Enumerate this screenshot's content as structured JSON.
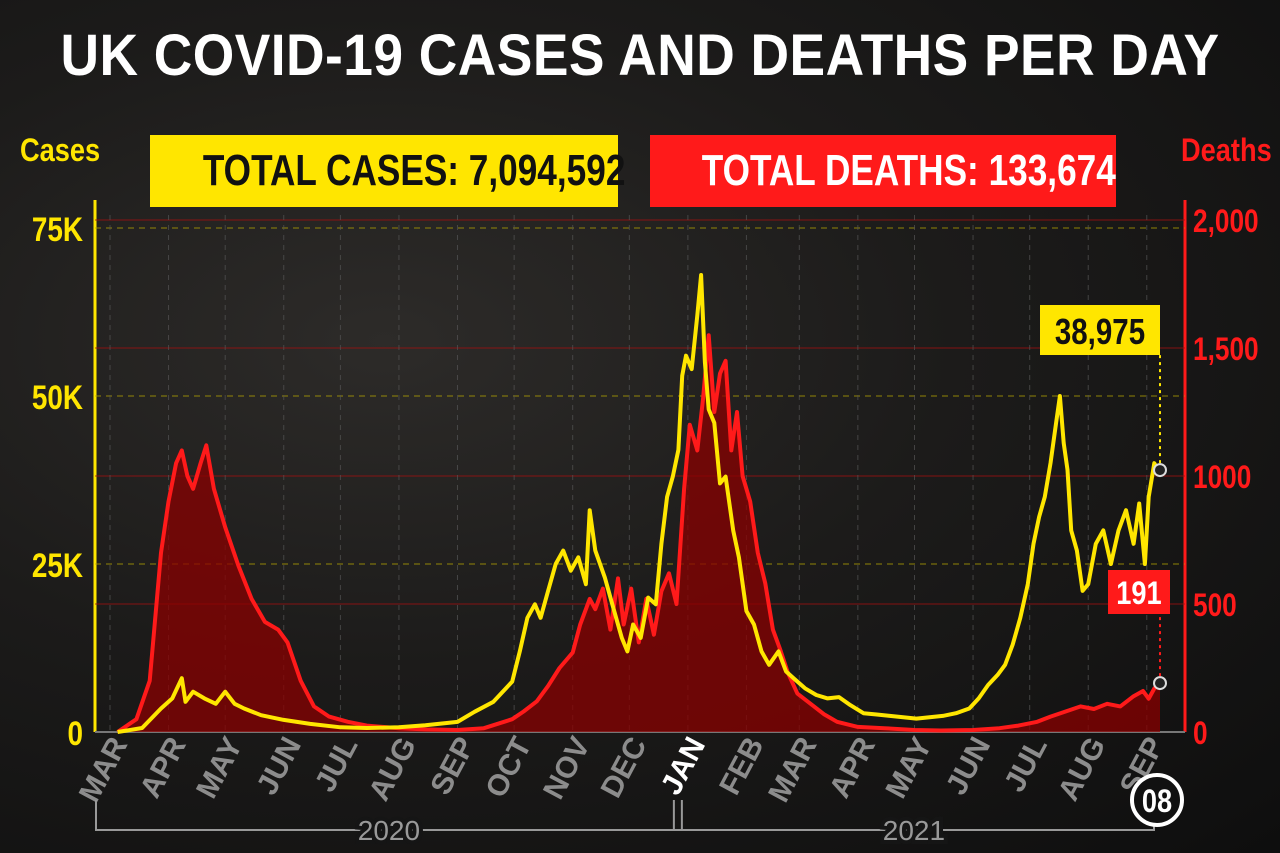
{
  "title": "UK COVID-19 CASES AND DEATHS PER DAY",
  "totals": {
    "cases_label": "TOTAL CASES: 7,094,592",
    "deaths_label": "TOTAL DEATHS: 133,674"
  },
  "callouts": {
    "latest_cases": "38,975",
    "latest_deaths": "191",
    "latest_date": "08"
  },
  "colors": {
    "cases": "#ffe600",
    "deaths": "#ff1a1a",
    "deaths_fill": "#8a0000",
    "month_labels": "#8c8c8c",
    "jan_label": "#ffffff"
  },
  "chart_data": {
    "type": "line",
    "title": "UK COVID-19 CASES AND DEATHS PER DAY",
    "left_axis": {
      "label": "Cases",
      "ticks": [
        "75K",
        "50K",
        "25K",
        "0"
      ],
      "range": [
        0,
        75000
      ]
    },
    "right_axis": {
      "label": "Deaths",
      "ticks": [
        "2,000",
        "1,500",
        "1000",
        "500",
        "0"
      ],
      "range": [
        0,
        2000
      ]
    },
    "x_range": [
      "2020-03-01",
      "2021-09-08"
    ],
    "months": [
      {
        "label": "MAR",
        "date": "2020-03-01"
      },
      {
        "label": "APR",
        "date": "2020-04-01"
      },
      {
        "label": "MAY",
        "date": "2020-05-01"
      },
      {
        "label": "JUN",
        "date": "2020-06-01"
      },
      {
        "label": "JUL",
        "date": "2020-07-01"
      },
      {
        "label": "AUG",
        "date": "2020-08-01"
      },
      {
        "label": "SEP",
        "date": "2020-09-01"
      },
      {
        "label": "OCT",
        "date": "2020-10-01"
      },
      {
        "label": "NOV",
        "date": "2020-11-01"
      },
      {
        "label": "DEC",
        "date": "2020-12-01"
      },
      {
        "label": "JAN",
        "date": "2021-01-01"
      },
      {
        "label": "FEB",
        "date": "2021-02-01"
      },
      {
        "label": "MAR",
        "date": "2021-03-01"
      },
      {
        "label": "APR",
        "date": "2021-04-01"
      },
      {
        "label": "MAY",
        "date": "2021-05-01"
      },
      {
        "label": "JUN",
        "date": "2021-06-01"
      },
      {
        "label": "JUL",
        "date": "2021-07-01"
      },
      {
        "label": "AUG",
        "date": "2021-08-01"
      },
      {
        "label": "SEP",
        "date": "2021-09-01"
      }
    ],
    "years": [
      {
        "label": "2020",
        "start": "2020-03-01",
        "end": "2021-01-01"
      },
      {
        "label": "2021",
        "start": "2021-01-01",
        "end": "2021-09-08"
      }
    ],
    "series": [
      {
        "name": "Cases",
        "axis": "left",
        "points": [
          [
            "2020-03-05",
            0
          ],
          [
            "2020-03-18",
            600
          ],
          [
            "2020-03-28",
            3500
          ],
          [
            "2020-04-03",
            5000
          ],
          [
            "2020-04-08",
            8000
          ],
          [
            "2020-04-10",
            4500
          ],
          [
            "2020-04-14",
            6000
          ],
          [
            "2020-04-20",
            5000
          ],
          [
            "2020-04-26",
            4200
          ],
          [
            "2020-05-01",
            6000
          ],
          [
            "2020-05-06",
            4200
          ],
          [
            "2020-05-11",
            3500
          ],
          [
            "2020-05-20",
            2500
          ],
          [
            "2020-06-01",
            1800
          ],
          [
            "2020-06-15",
            1200
          ],
          [
            "2020-07-01",
            700
          ],
          [
            "2020-07-15",
            600
          ],
          [
            "2020-08-01",
            700
          ],
          [
            "2020-08-15",
            1000
          ],
          [
            "2020-09-01",
            1500
          ],
          [
            "2020-09-10",
            3000
          ],
          [
            "2020-09-20",
            4500
          ],
          [
            "2020-09-30",
            7500
          ],
          [
            "2020-10-04",
            12000
          ],
          [
            "2020-10-08",
            17000
          ],
          [
            "2020-10-12",
            19000
          ],
          [
            "2020-10-15",
            17000
          ],
          [
            "2020-10-19",
            21000
          ],
          [
            "2020-10-23",
            25000
          ],
          [
            "2020-10-27",
            27000
          ],
          [
            "2020-10-31",
            24000
          ],
          [
            "2020-11-04",
            26000
          ],
          [
            "2020-11-08",
            22000
          ],
          [
            "2020-11-10",
            33000
          ],
          [
            "2020-11-13",
            27000
          ],
          [
            "2020-11-18",
            23000
          ],
          [
            "2020-11-22",
            19000
          ],
          [
            "2020-11-27",
            14000
          ],
          [
            "2020-11-30",
            12000
          ],
          [
            "2020-12-03",
            16000
          ],
          [
            "2020-12-07",
            14000
          ],
          [
            "2020-12-11",
            20000
          ],
          [
            "2020-12-15",
            19000
          ],
          [
            "2020-12-18",
            28000
          ],
          [
            "2020-12-21",
            35000
          ],
          [
            "2020-12-24",
            38000
          ],
          [
            "2020-12-27",
            42000
          ],
          [
            "2020-12-29",
            53000
          ],
          [
            "2020-12-31",
            56000
          ],
          [
            "2021-01-03",
            54000
          ],
          [
            "2021-01-06",
            62000
          ],
          [
            "2021-01-08",
            68000
          ],
          [
            "2021-01-10",
            55000
          ],
          [
            "2021-01-12",
            48000
          ],
          [
            "2021-01-15",
            46000
          ],
          [
            "2021-01-18",
            37000
          ],
          [
            "2021-01-21",
            38000
          ],
          [
            "2021-01-25",
            30000
          ],
          [
            "2021-01-28",
            26000
          ],
          [
            "2021-02-01",
            18000
          ],
          [
            "2021-02-05",
            16000
          ],
          [
            "2021-02-09",
            12000
          ],
          [
            "2021-02-13",
            10000
          ],
          [
            "2021-02-18",
            12000
          ],
          [
            "2021-02-22",
            9000
          ],
          [
            "2021-02-26",
            8000
          ],
          [
            "2021-03-04",
            6500
          ],
          [
            "2021-03-10",
            5500
          ],
          [
            "2021-03-16",
            5000
          ],
          [
            "2021-03-22",
            5200
          ],
          [
            "2021-03-28",
            4000
          ],
          [
            "2021-04-04",
            2800
          ],
          [
            "2021-04-11",
            2600
          ],
          [
            "2021-04-18",
            2400
          ],
          [
            "2021-04-25",
            2200
          ],
          [
            "2021-05-02",
            2000
          ],
          [
            "2021-05-09",
            2200
          ],
          [
            "2021-05-16",
            2400
          ],
          [
            "2021-05-23",
            2800
          ],
          [
            "2021-05-30",
            3500
          ],
          [
            "2021-06-04",
            5000
          ],
          [
            "2021-06-09",
            7000
          ],
          [
            "2021-06-14",
            8500
          ],
          [
            "2021-06-18",
            10000
          ],
          [
            "2021-06-22",
            13000
          ],
          [
            "2021-06-26",
            17000
          ],
          [
            "2021-06-30",
            22000
          ],
          [
            "2021-07-03",
            28000
          ],
          [
            "2021-07-06",
            32000
          ],
          [
            "2021-07-09",
            35000
          ],
          [
            "2021-07-12",
            40000
          ],
          [
            "2021-07-15",
            46000
          ],
          [
            "2021-07-17",
            50000
          ],
          [
            "2021-07-19",
            43000
          ],
          [
            "2021-07-21",
            39000
          ],
          [
            "2021-07-23",
            30000
          ],
          [
            "2021-07-26",
            27000
          ],
          [
            "2021-07-29",
            21000
          ],
          [
            "2021-08-01",
            22000
          ],
          [
            "2021-08-05",
            28000
          ],
          [
            "2021-08-09",
            30000
          ],
          [
            "2021-08-13",
            25000
          ],
          [
            "2021-08-17",
            30000
          ],
          [
            "2021-08-21",
            33000
          ],
          [
            "2021-08-25",
            28000
          ],
          [
            "2021-08-28",
            34000
          ],
          [
            "2021-08-31",
            25000
          ],
          [
            "2021-09-02",
            35000
          ],
          [
            "2021-09-05",
            40000
          ],
          [
            "2021-09-07",
            39000
          ],
          [
            "2021-09-08",
            38975
          ]
        ]
      },
      {
        "name": "Deaths",
        "axis": "right",
        "points": [
          [
            "2020-03-05",
            0
          ],
          [
            "2020-03-15",
            50
          ],
          [
            "2020-03-22",
            200
          ],
          [
            "2020-03-28",
            700
          ],
          [
            "2020-04-01",
            900
          ],
          [
            "2020-04-05",
            1050
          ],
          [
            "2020-04-08",
            1100
          ],
          [
            "2020-04-11",
            1000
          ],
          [
            "2020-04-14",
            950
          ],
          [
            "2020-04-18",
            1050
          ],
          [
            "2020-04-21",
            1120
          ],
          [
            "2020-04-25",
            950
          ],
          [
            "2020-05-01",
            800
          ],
          [
            "2020-05-08",
            650
          ],
          [
            "2020-05-15",
            520
          ],
          [
            "2020-05-22",
            430
          ],
          [
            "2020-05-29",
            400
          ],
          [
            "2020-06-03",
            350
          ],
          [
            "2020-06-10",
            200
          ],
          [
            "2020-06-17",
            100
          ],
          [
            "2020-06-25",
            60
          ],
          [
            "2020-07-05",
            40
          ],
          [
            "2020-07-15",
            25
          ],
          [
            "2020-08-01",
            15
          ],
          [
            "2020-08-15",
            10
          ],
          [
            "2020-09-01",
            8
          ],
          [
            "2020-09-15",
            15
          ],
          [
            "2020-09-30",
            50
          ],
          [
            "2020-10-06",
            80
          ],
          [
            "2020-10-13",
            120
          ],
          [
            "2020-10-19",
            180
          ],
          [
            "2020-10-25",
            250
          ],
          [
            "2020-11-01",
            310
          ],
          [
            "2020-11-05",
            420
          ],
          [
            "2020-11-10",
            520
          ],
          [
            "2020-11-13",
            480
          ],
          [
            "2020-11-17",
            560
          ],
          [
            "2020-11-21",
            400
          ],
          [
            "2020-11-25",
            600
          ],
          [
            "2020-11-28",
            420
          ],
          [
            "2020-12-02",
            560
          ],
          [
            "2020-12-06",
            350
          ],
          [
            "2020-12-10",
            520
          ],
          [
            "2020-12-14",
            380
          ],
          [
            "2020-12-18",
            550
          ],
          [
            "2020-12-22",
            620
          ],
          [
            "2020-12-26",
            500
          ],
          [
            "2020-12-30",
            950
          ],
          [
            "2021-01-02",
            1200
          ],
          [
            "2021-01-06",
            1100
          ],
          [
            "2021-01-09",
            1300
          ],
          [
            "2021-01-12",
            1550
          ],
          [
            "2021-01-15",
            1250
          ],
          [
            "2021-01-18",
            1400
          ],
          [
            "2021-01-21",
            1450
          ],
          [
            "2021-01-24",
            1100
          ],
          [
            "2021-01-27",
            1250
          ],
          [
            "2021-01-30",
            1000
          ],
          [
            "2021-02-03",
            900
          ],
          [
            "2021-02-07",
            700
          ],
          [
            "2021-02-11",
            580
          ],
          [
            "2021-02-15",
            400
          ],
          [
            "2021-02-19",
            320
          ],
          [
            "2021-02-23",
            230
          ],
          [
            "2021-02-28",
            150
          ],
          [
            "2021-03-07",
            110
          ],
          [
            "2021-03-14",
            70
          ],
          [
            "2021-03-21",
            40
          ],
          [
            "2021-04-01",
            20
          ],
          [
            "2021-04-15",
            15
          ],
          [
            "2021-05-01",
            8
          ],
          [
            "2021-05-15",
            6
          ],
          [
            "2021-06-01",
            8
          ],
          [
            "2021-06-15",
            15
          ],
          [
            "2021-06-25",
            25
          ],
          [
            "2021-07-05",
            40
          ],
          [
            "2021-07-12",
            60
          ],
          [
            "2021-07-20",
            80
          ],
          [
            "2021-07-28",
            100
          ],
          [
            "2021-08-04",
            90
          ],
          [
            "2021-08-11",
            110
          ],
          [
            "2021-08-18",
            100
          ],
          [
            "2021-08-25",
            140
          ],
          [
            "2021-08-30",
            160
          ],
          [
            "2021-09-02",
            130
          ],
          [
            "2021-09-05",
            170
          ],
          [
            "2021-09-08",
            191
          ]
        ]
      }
    ]
  }
}
